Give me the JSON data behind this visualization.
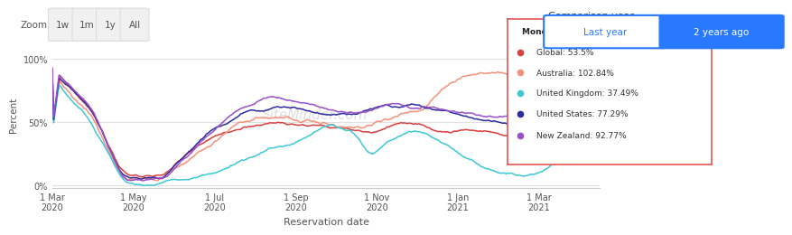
{
  "xlabel": "Reservation date",
  "ylabel": "Percent",
  "ytick_labels": [
    "0%",
    "50%",
    "100%"
  ],
  "xtick_labels": [
    "1 Mar\n2020",
    "1 May\n2020",
    "1 Jul\n2020",
    "1 Sep\n2020",
    "1 Nov\n2020",
    "1 Jan\n2021",
    "1 Mar\n2021"
  ],
  "zoom_buttons": [
    "1w",
    "1m",
    "1y",
    "All"
  ],
  "comparison_label": "Comparison year:",
  "btn_last_year": "Last year",
  "btn_2years_ago": "2 years ago",
  "watermark": "SiteMinder.com",
  "tooltip_title": "Monday, Apr 12, 2021",
  "tooltip_entries": [
    {
      "label": "Global: 53.5%",
      "color": "#d94040"
    },
    {
      "label": "Australia: 102.84%",
      "color": "#f4917a"
    },
    {
      "label": "United Kingdom: 37.49%",
      "color": "#3dc8d8"
    },
    {
      "label": "United States: 77.29%",
      "color": "#2d2d9e"
    },
    {
      "label": "New Zealand: 92.77%",
      "color": "#9a50c8"
    }
  ],
  "series_colors": {
    "Global": "#d94040",
    "Australia": "#f4917a",
    "United Kingdom": "#3dc8d8",
    "United States": "#2d2d9e",
    "New Zealand": "#9a50c8"
  },
  "background_color": "#ffffff",
  "plot_bg_color": "#ffffff",
  "grid_color": "#e0e0e0",
  "n_points": 410
}
